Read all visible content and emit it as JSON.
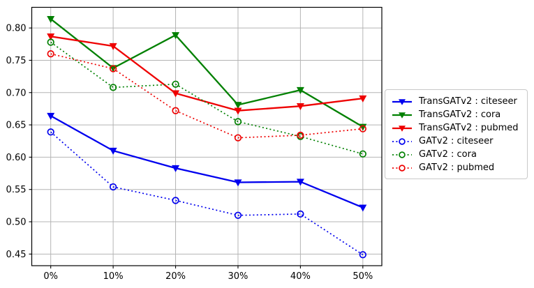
{
  "figure": {
    "background": "#ffffff",
    "plot_border_color": "#000000",
    "grid_color": "#b4b4b4",
    "tick_label_color": "#000000"
  },
  "chart_data": {
    "type": "line",
    "title": "",
    "xlabel": "",
    "ylabel": "",
    "categories": [
      "0%",
      "10%",
      "20%",
      "30%",
      "40%",
      "50%"
    ],
    "x_values": [
      0,
      10,
      20,
      30,
      40,
      50
    ],
    "xlim": [
      -3.04,
      53.04
    ],
    "ylim": [
      0.432,
      0.832
    ],
    "yticks": [
      0.45,
      0.5,
      0.55,
      0.6,
      0.65,
      0.7,
      0.75,
      0.8
    ],
    "grid": true,
    "legend_position": "outside-center-right",
    "series": [
      {
        "name": "TransGATv2 : citeseer",
        "color": "#0000ee",
        "line": "solid",
        "marker": "triangle-down",
        "values": [
          0.664,
          0.61,
          0.583,
          0.561,
          0.562,
          0.522
        ]
      },
      {
        "name": "TransGATv2 : cora",
        "color": "#008000",
        "line": "solid",
        "marker": "triangle-down",
        "values": [
          0.814,
          0.738,
          0.789,
          0.681,
          0.704,
          0.647
        ]
      },
      {
        "name": "TransGATv2 : pubmed",
        "color": "#ee0000",
        "line": "solid",
        "marker": "triangle-down",
        "values": [
          0.787,
          0.772,
          0.699,
          0.672,
          0.679,
          0.691
        ]
      },
      {
        "name": "GATv2 : citeseer",
        "color": "#0000ee",
        "line": "dotted",
        "marker": "circle-open",
        "values": [
          0.639,
          0.554,
          0.533,
          0.51,
          0.512,
          0.449
        ]
      },
      {
        "name": "GATv2 : cora",
        "color": "#008000",
        "line": "dotted",
        "marker": "circle-open",
        "values": [
          0.778,
          0.708,
          0.713,
          0.655,
          0.632,
          0.605
        ]
      },
      {
        "name": "GATv2 : pubmed",
        "color": "#ee0000",
        "line": "dotted",
        "marker": "circle-open",
        "values": [
          0.76,
          0.737,
          0.672,
          0.63,
          0.634,
          0.644
        ]
      }
    ]
  }
}
